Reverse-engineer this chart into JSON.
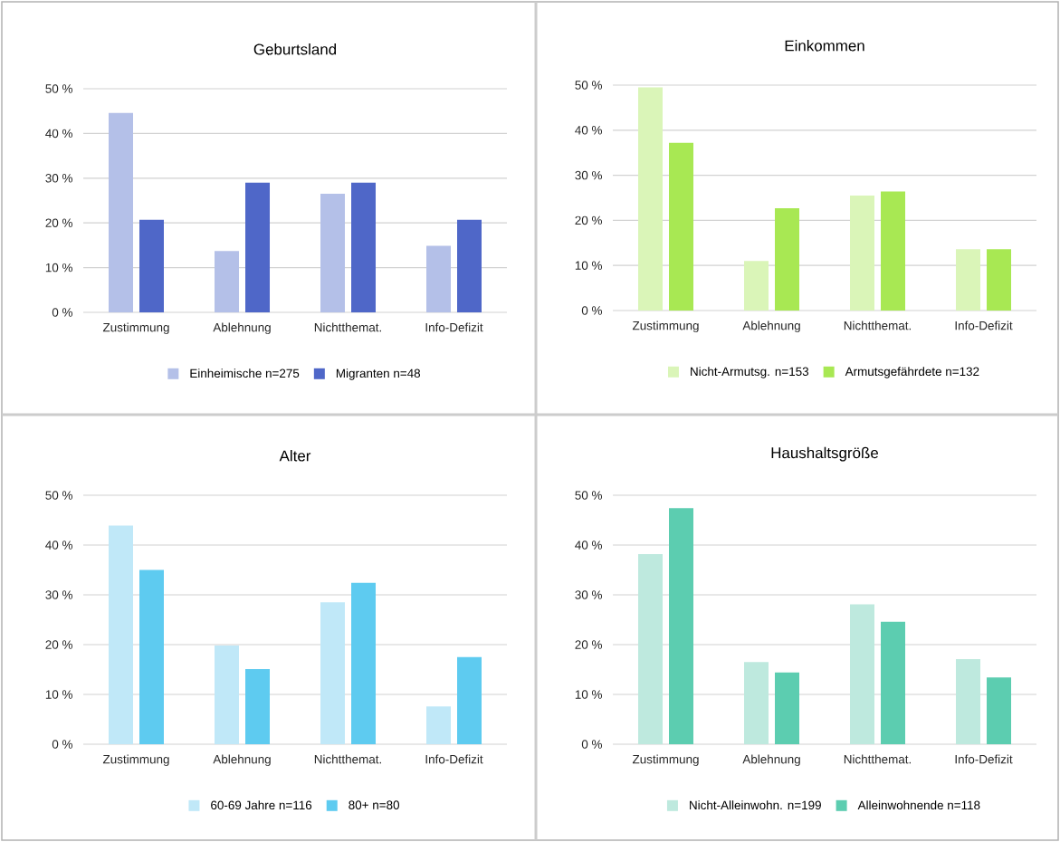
{
  "chart_data": [
    {
      "type": "bar",
      "title": "Geburtsland",
      "categories": [
        "Zustimmung",
        "Ablehnung",
        "Nichtthemat.",
        "Info-Defizit"
      ],
      "series": [
        {
          "name": "Einheimische n=275",
          "color": "#b4c0e8",
          "values": [
            44.6,
            13.7,
            26.5,
            14.9
          ]
        },
        {
          "name": "Migranten n=48",
          "color": "#4f67c8",
          "values": [
            20.7,
            29.0,
            29.0,
            20.7
          ]
        }
      ],
      "ylim": [
        0,
        50
      ],
      "yticks": [
        {
          "value": 0,
          "label": "0 %"
        },
        {
          "value": 10,
          "label": "10 %"
        },
        {
          "value": 20,
          "label": "20 %"
        },
        {
          "value": 30,
          "label": "30 %"
        },
        {
          "value": 40,
          "label": "40 %"
        },
        {
          "value": 50,
          "label": "50 %"
        }
      ],
      "grid": "y",
      "legend": "bottom"
    },
    {
      "type": "bar",
      "title": "Einkommen",
      "categories": [
        "Zustimmung",
        "Ablehnung",
        "Nichtthemat.",
        "Info-Defizit"
      ],
      "series": [
        {
          "name": "Nicht-Armutsg. n=153",
          "color": "#daf5b8",
          "values": [
            49.5,
            11.0,
            25.5,
            13.6
          ]
        },
        {
          "name": "Armutsgefährdete n=132",
          "color": "#a8e853",
          "values": [
            37.2,
            22.7,
            26.4,
            13.6
          ]
        }
      ],
      "ylim": [
        0,
        50
      ],
      "yticks": [
        {
          "value": 0,
          "label": "0 %"
        },
        {
          "value": 10,
          "label": "10 %"
        },
        {
          "value": 20,
          "label": "20 %"
        },
        {
          "value": 30,
          "label": "30 %"
        },
        {
          "value": 40,
          "label": "40 %"
        },
        {
          "value": 50,
          "label": "50 %"
        }
      ],
      "grid": "y",
      "legend": "bottom"
    },
    {
      "type": "bar",
      "title": "Alter",
      "categories": [
        "Zustimmung",
        "Ablehnung",
        "Nichtthemat.",
        "Info-Defizit"
      ],
      "series": [
        {
          "name": "60-69 Jahre n=116",
          "color": "#c0e8f8",
          "values": [
            43.9,
            19.8,
            28.5,
            7.6
          ]
        },
        {
          "name": "80+ n=80",
          "color": "#5ecbf0",
          "values": [
            35.0,
            15.1,
            32.4,
            17.5
          ]
        }
      ],
      "ylim": [
        0,
        50
      ],
      "yticks": [
        {
          "value": 0,
          "label": "0 %"
        },
        {
          "value": 10,
          "label": "10 %"
        },
        {
          "value": 20,
          "label": "20 %"
        },
        {
          "value": 30,
          "label": "30 %"
        },
        {
          "value": 40,
          "label": "40 %"
        },
        {
          "value": 50,
          "label": "50 %"
        }
      ],
      "grid": "y",
      "legend": "bottom"
    },
    {
      "type": "bar",
      "title": "Haushaltsgröße",
      "categories": [
        "Zustimmung",
        "Ablehnung",
        "Nichtthemat.",
        "Info-Defizit"
      ],
      "series": [
        {
          "name": "Nicht-Alleinwohn. n=199",
          "color": "#bee9de",
          "values": [
            38.2,
            16.5,
            28.1,
            17.1
          ]
        },
        {
          "name": "Alleinwohnende n=118",
          "color": "#5ccdb0",
          "values": [
            47.4,
            14.4,
            24.6,
            13.4
          ]
        }
      ],
      "ylim": [
        0,
        50
      ],
      "yticks": [
        {
          "value": 0,
          "label": "0 %"
        },
        {
          "value": 10,
          "label": "10 %"
        },
        {
          "value": 20,
          "label": "20 %"
        },
        {
          "value": 30,
          "label": "30 %"
        },
        {
          "value": 40,
          "label": "40 %"
        },
        {
          "value": 50,
          "label": "50 %"
        }
      ],
      "grid": "y",
      "legend": "bottom"
    }
  ]
}
